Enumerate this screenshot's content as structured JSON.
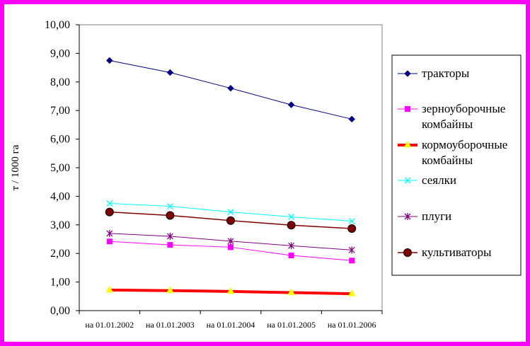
{
  "chart_data": {
    "type": "line",
    "title": "",
    "xlabel": "",
    "ylabel": "т / 1000 га",
    "categories": [
      "на 01.01.2002",
      "на 01.01.2003",
      "на 01.01.2004",
      "на 01.01.2005",
      "на 01.01.2006"
    ],
    "y_ticks": [
      "0,00",
      "1,00",
      "2,00",
      "3,00",
      "4,00",
      "5,00",
      "6,00",
      "7,00",
      "8,00",
      "9,00",
      "10,00"
    ],
    "ylim": [
      0,
      10
    ],
    "grid": false,
    "legend_position": "right",
    "series": [
      {
        "name": "тракторы",
        "values": [
          8.75,
          8.33,
          7.78,
          7.2,
          6.7
        ],
        "color": "#000080",
        "marker": "diamond",
        "width": 1
      },
      {
        "name": "зерноуборочные комбайны",
        "values": [
          2.42,
          2.3,
          2.22,
          1.93,
          1.75
        ],
        "color": "#ff00ff",
        "marker": "square",
        "width": 1
      },
      {
        "name": "кормоуборочные комбайны",
        "values": [
          0.72,
          0.7,
          0.67,
          0.63,
          0.59
        ],
        "color": "#ff0000",
        "marker": "triangle",
        "marker_color": "#ffff00",
        "width": 4
      },
      {
        "name": "сеялки",
        "values": [
          3.75,
          3.65,
          3.45,
          3.28,
          3.13
        ],
        "color": "#00ffff",
        "marker": "x",
        "width": 1
      },
      {
        "name": "плуги",
        "values": [
          2.7,
          2.6,
          2.43,
          2.27,
          2.12
        ],
        "color": "#800080",
        "marker": "star",
        "width": 1
      },
      {
        "name": "культиваторы",
        "values": [
          3.45,
          3.33,
          3.15,
          2.99,
          2.87
        ],
        "color": "#800000",
        "marker": "circle",
        "marker_color": "#800000",
        "width": 1.5
      }
    ]
  }
}
